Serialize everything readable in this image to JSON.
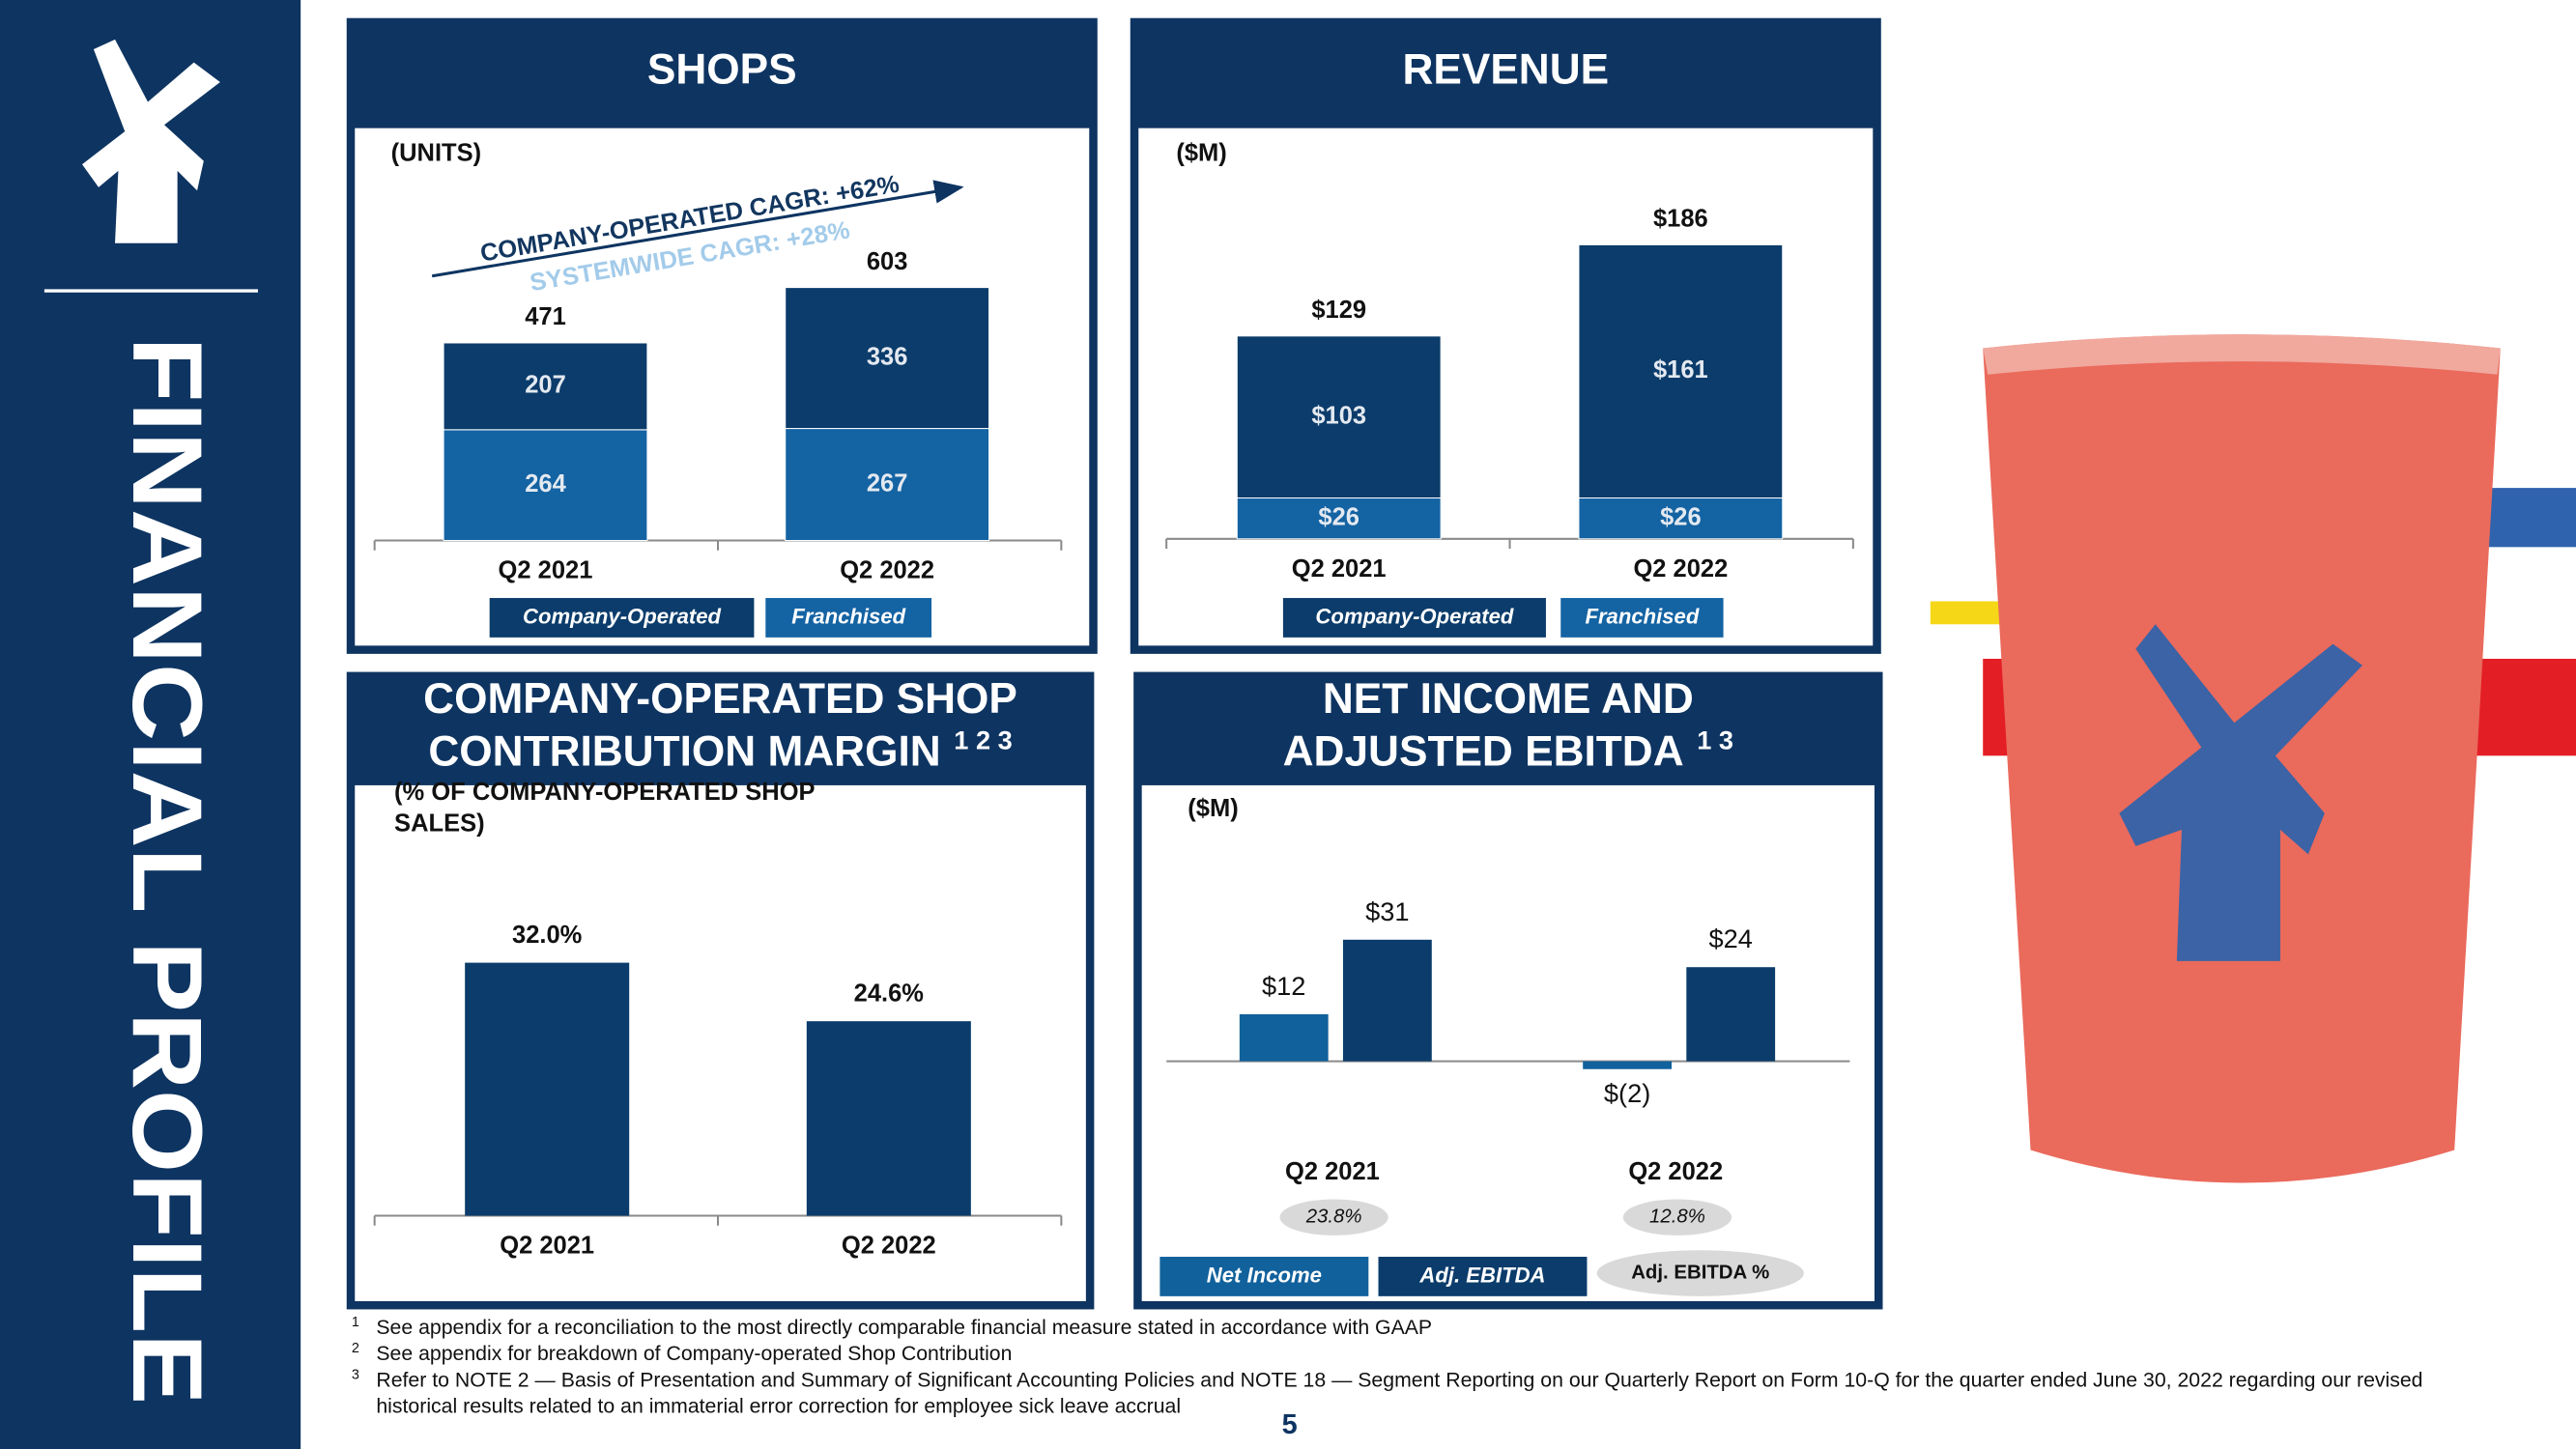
{
  "side_title": "FINANCIAL PROFILE",
  "chart_data": [
    {
      "type": "stacked_bar",
      "title": "SHOPS",
      "unit_label": "(UNITS)",
      "annotations": [
        "COMPANY-OPERATED CAGR: +62%",
        "SYSTEMWIDE CAGR: +28%"
      ],
      "categories": [
        "Q2 2021",
        "Q2 2022"
      ],
      "series": [
        {
          "name": "Company-Operated",
          "color": "#0b3c6b",
          "values": [
            207,
            336
          ]
        },
        {
          "name": "Franchised",
          "color": "#1463a3",
          "values": [
            264,
            267
          ]
        }
      ],
      "totals": [
        471,
        603
      ]
    },
    {
      "type": "stacked_bar",
      "title": "REVENUE",
      "unit_label": "($M)",
      "categories": [
        "Q2 2021",
        "Q2 2022"
      ],
      "series": [
        {
          "name": "Company-Operated",
          "color": "#0b3c6b",
          "values": [
            103,
            161
          ],
          "value_labels": [
            "$103",
            "$161"
          ]
        },
        {
          "name": "Franchised",
          "color": "#1463a3",
          "values": [
            26,
            26
          ],
          "value_labels": [
            "$26",
            "$26"
          ]
        }
      ],
      "totals": [
        129,
        186
      ],
      "total_labels": [
        "$129",
        "$186"
      ]
    },
    {
      "type": "bar",
      "title": [
        "COMPANY-OPERATED SHOP",
        "CONTRIBUTION MARGIN"
      ],
      "title_note": "1 2 3",
      "unit_label": "(% OF COMPANY-OPERATED SHOP SALES)",
      "categories": [
        "Q2 2021",
        "Q2 2022"
      ],
      "values": [
        32.0,
        24.6
      ],
      "value_labels": [
        "32.0%",
        "24.6%"
      ],
      "color": "#0b3c6b"
    },
    {
      "type": "grouped_bar",
      "title": [
        "NET INCOME AND",
        "ADJUSTED EBITDA"
      ],
      "title_note": "1 3",
      "unit_label": "($M)",
      "categories": [
        "Q2 2021",
        "Q2 2022"
      ],
      "series": [
        {
          "name": "Net Income",
          "color": "#11619c",
          "values": [
            12,
            -2
          ],
          "value_labels": [
            "$12",
            "$(2)"
          ]
        },
        {
          "name": "Adj. EBITDA",
          "color": "#0b3c6b",
          "values": [
            31,
            24
          ],
          "value_labels": [
            "$31",
            "$24"
          ]
        }
      ],
      "ratio": {
        "name": "Adj. EBITDA %",
        "color": "#d9d9d9",
        "values": [
          23.8,
          12.8
        ],
        "value_labels": [
          "23.8%",
          "12.8%"
        ]
      }
    }
  ],
  "footnotes": [
    {
      "mark": "1",
      "text": "See appendix for a reconciliation to the most directly comparable financial measure stated in accordance with GAAP"
    },
    {
      "mark": "2",
      "text": "See appendix for breakdown of Company-operated Shop Contribution"
    },
    {
      "mark": "3",
      "text": "Refer to NOTE 2 — Basis of Presentation and Summary of Significant Accounting Policies and NOTE 18 — Segment Reporting on our Quarterly Report on Form 10-Q for the quarter ended June 30, 2022 regarding our revised historical results related to an immaterial error correction for employee sick leave accrual"
    }
  ],
  "page_number": "5"
}
